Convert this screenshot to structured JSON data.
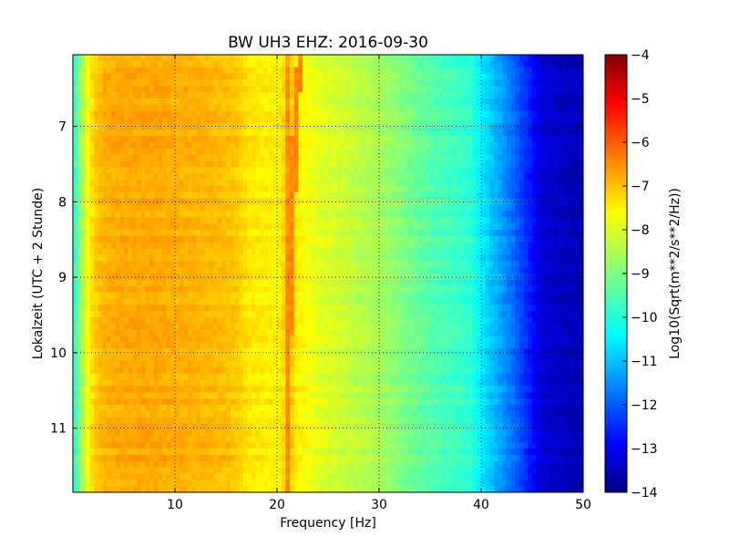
{
  "chart_data": {
    "type": "heatmap",
    "title": "BW UH3 EHZ: 2016-09-30",
    "xlabel": "Frequency [Hz]",
    "ylabel": "Lokalzeit (UTC + 2 Stunde)",
    "xlim": [
      0,
      50
    ],
    "ylim": [
      6.05,
      11.85
    ],
    "y_inverted": true,
    "x_ticks": [
      10,
      20,
      30,
      40,
      50
    ],
    "y_ticks": [
      7,
      8,
      9,
      10,
      11
    ],
    "grid": true,
    "colormap": "jet",
    "colorbar": {
      "label": "Log10(Sqrt(m**2/s**2/Hz))",
      "range": [
        -14,
        -4
      ],
      "ticks": [
        -4,
        -5,
        -6,
        -7,
        -8,
        -9,
        -10,
        -11,
        -12,
        -13,
        -14
      ]
    },
    "spectrum_profile": {
      "frequency_hz": [
        0,
        0.5,
        1,
        1.5,
        2,
        3,
        5,
        8,
        12,
        15,
        16.5,
        17,
        19,
        20.5,
        21,
        21.5,
        22,
        23,
        24,
        25,
        28,
        30,
        33,
        35,
        37,
        39,
        40,
        41,
        42,
        43,
        44,
        45,
        46,
        50
      ],
      "log10_amplitude": [
        -10.0,
        -9.2,
        -8.4,
        -7.8,
        -7.3,
        -7.0,
        -6.9,
        -6.9,
        -7.0,
        -7.1,
        -7.3,
        -7.5,
        -7.6,
        -7.6,
        -6.6,
        -7.3,
        -7.65,
        -7.8,
        -8.0,
        -8.1,
        -8.4,
        -8.6,
        -9.1,
        -9.4,
        -9.6,
        -9.8,
        -10.4,
        -10.8,
        -11.2,
        -11.6,
        -12.1,
        -12.6,
        -13.2,
        -13.5
      ]
    },
    "tonal_line": {
      "description": "narrow band near 21-22 Hz",
      "time_h": [
        6.05,
        6.5,
        7.0,
        7.5,
        8.0,
        8.5,
        9.0,
        9.5,
        10.0,
        10.5,
        11.0,
        11.5,
        11.85
      ],
      "frequency_hz": [
        22.3,
        22.0,
        21.8,
        21.7,
        21.5,
        21.4,
        21.3,
        21.2,
        21.1,
        21.1,
        21.0,
        21.0,
        21.0
      ],
      "log10_amplitude": -6.6
    }
  }
}
